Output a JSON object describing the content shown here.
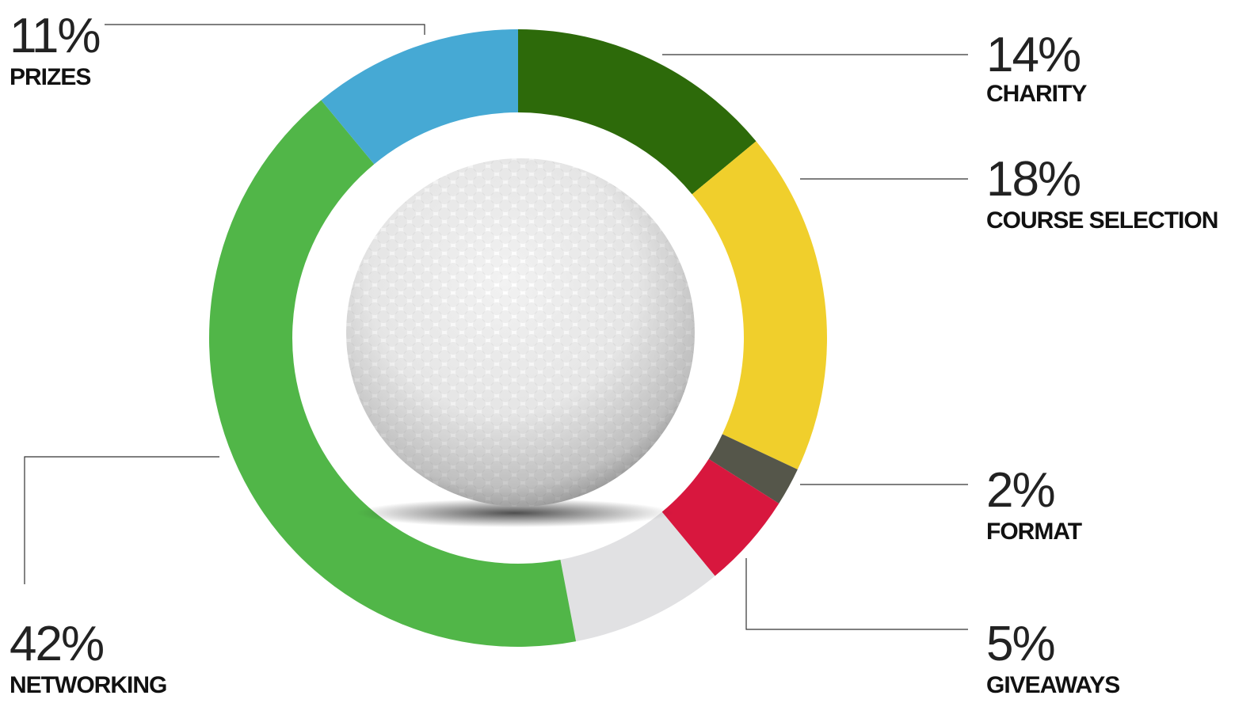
{
  "chart_data": {
    "type": "donut",
    "categories": [
      "CHARITY",
      "COURSE SELECTION",
      "FORMAT",
      "GIVEAWAYS",
      null,
      "NETWORKING",
      "PRIZES"
    ],
    "values": [
      14,
      18,
      2,
      5,
      8,
      42,
      11
    ],
    "value_labels": [
      "14%",
      "18%",
      "2%",
      "5%",
      null,
      "42%",
      "11%"
    ],
    "colors": [
      "#2d6a0a",
      "#f0cf2c",
      "#55564a",
      "#d8173e",
      "#e1e1e3",
      "#51b648",
      "#46a9d4"
    ]
  }
}
